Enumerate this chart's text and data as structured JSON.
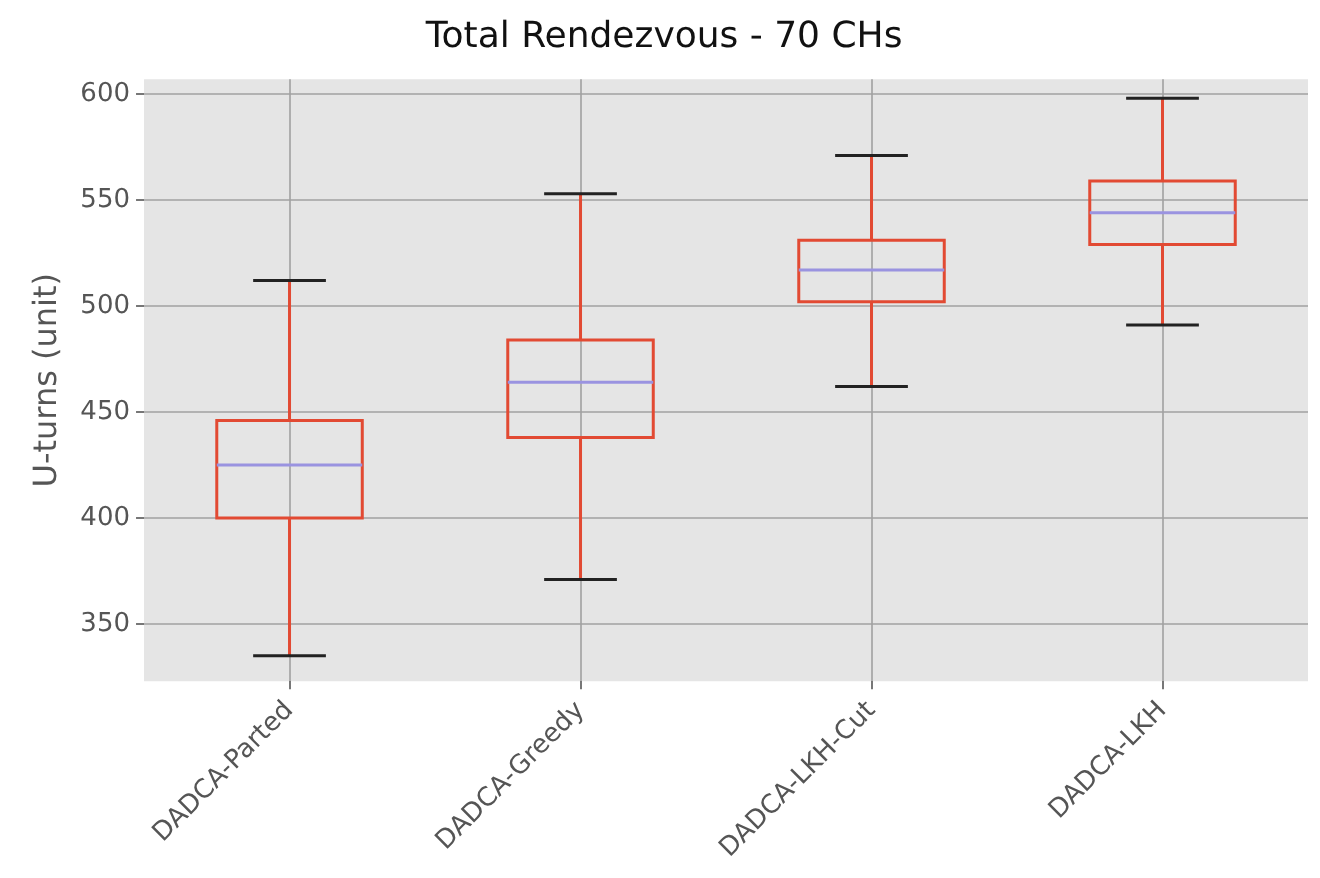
{
  "chart_data": {
    "type": "box",
    "title": "Total Rendezvous - 70 CHs",
    "ylabel": "U-turns (unit)",
    "categories": [
      "DADCA-Parted",
      "DADCA-Greedy",
      "DADCA-LKH-Cut",
      "DADCA-LKH"
    ],
    "color": "#e24a33",
    "boxes": [
      {
        "low": 335,
        "q1": 400,
        "median": 425,
        "q3": 446,
        "high": 512
      },
      {
        "low": 371,
        "q1": 438,
        "median": 464,
        "q3": 484,
        "high": 553
      },
      {
        "low": 462,
        "q1": 502,
        "median": 517,
        "q3": 531,
        "high": 571
      },
      {
        "low": 491,
        "q1": 529,
        "median": 544,
        "q3": 559,
        "high": 598
      }
    ],
    "ylim": [
      323,
      607
    ],
    "yticks": [
      350,
      400,
      450,
      500,
      550,
      600
    ],
    "grid": true,
    "legend": false
  }
}
